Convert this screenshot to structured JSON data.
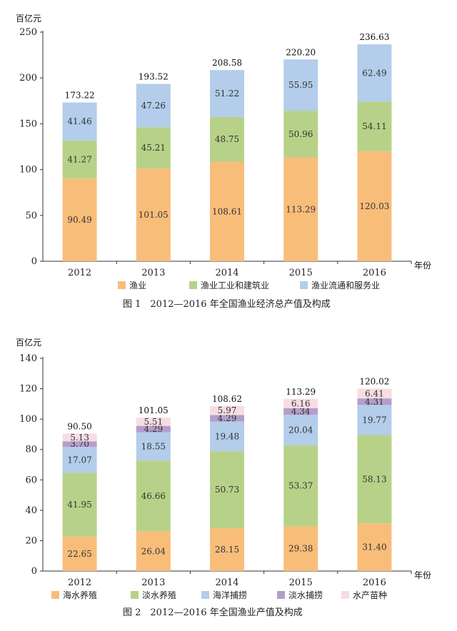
{
  "chart_data": [
    {
      "type": "bar",
      "stacked": true,
      "caption": "图 1　2012—2016 年全国渔业经济总产值及构成",
      "unit_label": "百亿元",
      "x_unit_label": "年份",
      "categories": [
        "2012",
        "2013",
        "2014",
        "2015",
        "2016"
      ],
      "ylim": [
        0,
        250
      ],
      "yticks": [
        0,
        50,
        100,
        150,
        200,
        250
      ],
      "series": [
        {
          "name": "渔业",
          "color": "#f9bd7a",
          "values": [
            90.49,
            101.05,
            108.61,
            113.29,
            120.03
          ]
        },
        {
          "name": "渔业工业和建筑业",
          "color": "#b7d288",
          "values": [
            41.27,
            45.21,
            48.75,
            50.96,
            54.11
          ]
        },
        {
          "name": "渔业流通和服务业",
          "color": "#b3cdeb",
          "values": [
            41.46,
            47.26,
            51.22,
            55.95,
            62.49
          ]
        }
      ],
      "totals": [
        173.22,
        193.52,
        208.58,
        220.2,
        236.63
      ]
    },
    {
      "type": "bar",
      "stacked": true,
      "caption": "图 2　2012—2016 年全国渔业产值及构成",
      "unit_label": "百亿元",
      "x_unit_label": "年份",
      "categories": [
        "2012",
        "2013",
        "2014",
        "2015",
        "2016"
      ],
      "ylim": [
        0,
        140
      ],
      "yticks": [
        0,
        20,
        40,
        60,
        80,
        100,
        120,
        140
      ],
      "series": [
        {
          "name": "海水养殖",
          "color": "#f9bd7a",
          "values": [
            22.65,
            26.04,
            28.15,
            29.38,
            31.4
          ]
        },
        {
          "name": "淡水养殖",
          "color": "#b7d288",
          "values": [
            41.95,
            46.66,
            50.73,
            53.37,
            58.13
          ]
        },
        {
          "name": "海洋捕捞",
          "color": "#b3cdeb",
          "values": [
            17.07,
            18.55,
            19.48,
            20.04,
            19.77
          ]
        },
        {
          "name": "淡水捕捞",
          "color": "#b39fcb",
          "values": [
            3.7,
            4.29,
            4.29,
            4.34,
            4.31
          ]
        },
        {
          "name": "水产苗种",
          "color": "#f7dde3",
          "values": [
            5.13,
            5.51,
            5.97,
            6.16,
            6.41
          ]
        }
      ],
      "totals": [
        90.5,
        101.05,
        108.62,
        113.29,
        120.02
      ]
    }
  ]
}
